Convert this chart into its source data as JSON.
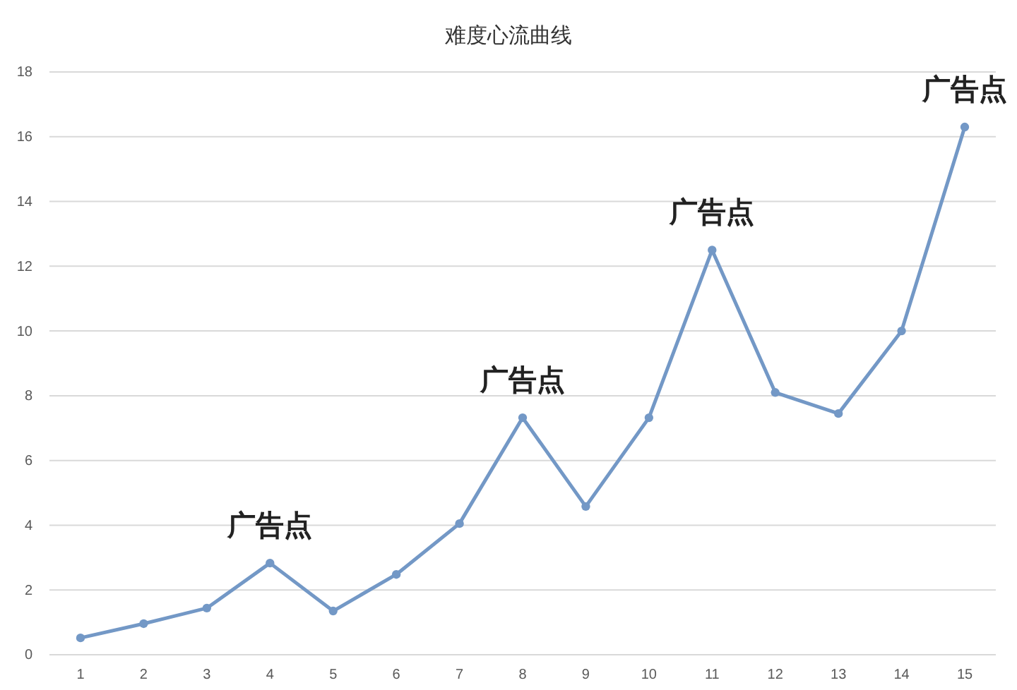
{
  "chart_data": {
    "type": "line",
    "title": "难度心流曲线",
    "categories": [
      "1",
      "2",
      "3",
      "4",
      "5",
      "6",
      "7",
      "8",
      "9",
      "10",
      "11",
      "12",
      "13",
      "14",
      "15"
    ],
    "series": [
      {
        "color": "#7398c6",
        "values": [
          0.52,
          0.96,
          1.44,
          2.83,
          1.35,
          2.48,
          4.05,
          7.32,
          4.58,
          7.32,
          12.5,
          8.1,
          7.45,
          10.0,
          16.3
        ]
      }
    ],
    "ylim": [
      0,
      18
    ],
    "yticks": [
      0,
      2,
      4,
      6,
      8,
      10,
      12,
      14,
      16,
      18
    ],
    "grid": "y",
    "marker": "circle",
    "line_style": "solid",
    "annotations": [
      {
        "text": "广告点",
        "x": "4",
        "y": 2.83
      },
      {
        "text": "广告点",
        "x": "8",
        "y": 7.32
      },
      {
        "text": "广告点",
        "x": "11",
        "y": 12.5
      },
      {
        "text": "广告点",
        "x": "15",
        "y": 16.3
      }
    ]
  }
}
